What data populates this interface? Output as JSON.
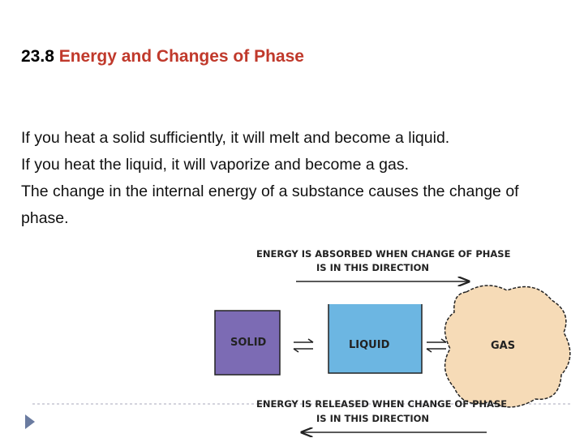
{
  "slide": {
    "number": "23.8",
    "title": "Energy and Changes of Phase",
    "body": [
      "If you heat a solid sufficiently, it will melt and become a liquid.",
      "If you heat the liquid, it will vaporize and become a gas.",
      "The change in the internal energy of a substance causes the change of phase."
    ]
  },
  "diagram": {
    "top_caption": [
      "ENERGY IS ABSORBED WHEN CHANGE OF PHASE",
      "IS IN THIS DIRECTION"
    ],
    "states": [
      "SOLID",
      "LIQUID",
      "GAS"
    ],
    "bottom_caption": [
      "ENERGY IS RELEASED WHEN CHANGE OF PHASE",
      "IS IN THIS DIRECTION"
    ]
  }
}
